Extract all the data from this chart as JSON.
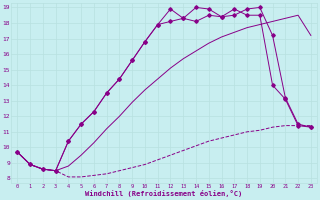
{
  "xlabel": "Windchill (Refroidissement éolien,°C)",
  "background_color": "#c8eef0",
  "grid_color": "#b8e0e0",
  "line_color": "#880088",
  "xmin": 0,
  "xmax": 23,
  "ymin": 8,
  "ymax": 19,
  "curve1_x": [
    0,
    1,
    2,
    3,
    4,
    5,
    6,
    7,
    8,
    9,
    10,
    11,
    12,
    13,
    14,
    15,
    16,
    17,
    18,
    19,
    20,
    21,
    22,
    23
  ],
  "curve1_y": [
    9.7,
    8.9,
    8.6,
    8.5,
    8.1,
    8.1,
    8.2,
    8.3,
    8.5,
    8.7,
    8.9,
    9.2,
    9.5,
    9.8,
    10.1,
    10.4,
    10.6,
    10.8,
    11.0,
    11.1,
    11.3,
    11.4,
    11.4,
    11.4
  ],
  "curve2_x": [
    0,
    1,
    2,
    3,
    4,
    5,
    6,
    7,
    8,
    9,
    10,
    11,
    12,
    13,
    14,
    15,
    16,
    17,
    18,
    19,
    20,
    21,
    22,
    23
  ],
  "curve2_y": [
    9.7,
    8.9,
    8.6,
    8.5,
    8.8,
    9.5,
    10.3,
    11.2,
    12.0,
    12.9,
    13.7,
    14.4,
    15.1,
    15.7,
    16.2,
    16.7,
    17.1,
    17.4,
    17.7,
    17.9,
    18.1,
    18.3,
    18.5,
    17.2
  ],
  "curve3_x": [
    0,
    1,
    2,
    3,
    4,
    5,
    6,
    7,
    8,
    9,
    10,
    11,
    12,
    13,
    14,
    15,
    16,
    17,
    18,
    19,
    20,
    21,
    22,
    23
  ],
  "curve3_y": [
    9.7,
    8.9,
    8.6,
    8.5,
    10.4,
    11.5,
    12.3,
    13.5,
    14.4,
    15.6,
    16.8,
    17.9,
    18.1,
    18.3,
    18.1,
    18.5,
    18.4,
    18.9,
    18.5,
    18.5,
    14.0,
    13.1,
    11.4,
    11.3
  ],
  "curve4_x": [
    0,
    1,
    2,
    3,
    4,
    5,
    6,
    7,
    8,
    9,
    10,
    11,
    12,
    13,
    14,
    15,
    16,
    17,
    18,
    19,
    20,
    21,
    22,
    23
  ],
  "curve4_y": [
    9.7,
    8.9,
    8.6,
    8.5,
    10.4,
    11.5,
    12.3,
    13.5,
    14.4,
    15.6,
    16.8,
    17.9,
    18.9,
    18.3,
    19.0,
    18.9,
    18.4,
    18.5,
    18.9,
    19.0,
    17.2,
    13.2,
    11.5,
    11.3
  ],
  "yticks": [
    8,
    9,
    10,
    11,
    12,
    13,
    14,
    15,
    16,
    17,
    18,
    19
  ],
  "xticks": [
    0,
    1,
    2,
    3,
    4,
    5,
    6,
    7,
    8,
    9,
    10,
    11,
    12,
    13,
    14,
    15,
    16,
    17,
    18,
    19,
    20,
    21,
    22,
    23
  ]
}
